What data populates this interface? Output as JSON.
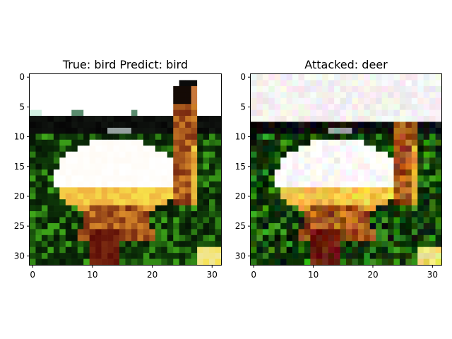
{
  "figure": {
    "panels": [
      {
        "title": "True: bird  Predict: bird",
        "x_ticks": [
          "0",
          "10",
          "20",
          "30"
        ],
        "y_ticks": [
          "0",
          "5",
          "10",
          "15",
          "20",
          "25",
          "30"
        ],
        "perturbed": false
      },
      {
        "title": "Attacked: deer",
        "x_ticks": [
          "0",
          "10",
          "20",
          "30"
        ],
        "y_ticks": [
          "0",
          "5",
          "10",
          "15",
          "20",
          "25",
          "30"
        ],
        "perturbed": true
      }
    ],
    "image_grid": {
      "width": 32,
      "height": 32
    },
    "scene_colors": {
      "sky": "#ffffff",
      "dark_band": "#050505",
      "body_light": "#fff8ee",
      "body_warm": "#f0b040",
      "orange": "#d98a2a",
      "brown": "#7a2a10",
      "green_bright": "#3fa81a",
      "green_dark": "#0e3a08",
      "yellow": "#f7e14a"
    }
  }
}
